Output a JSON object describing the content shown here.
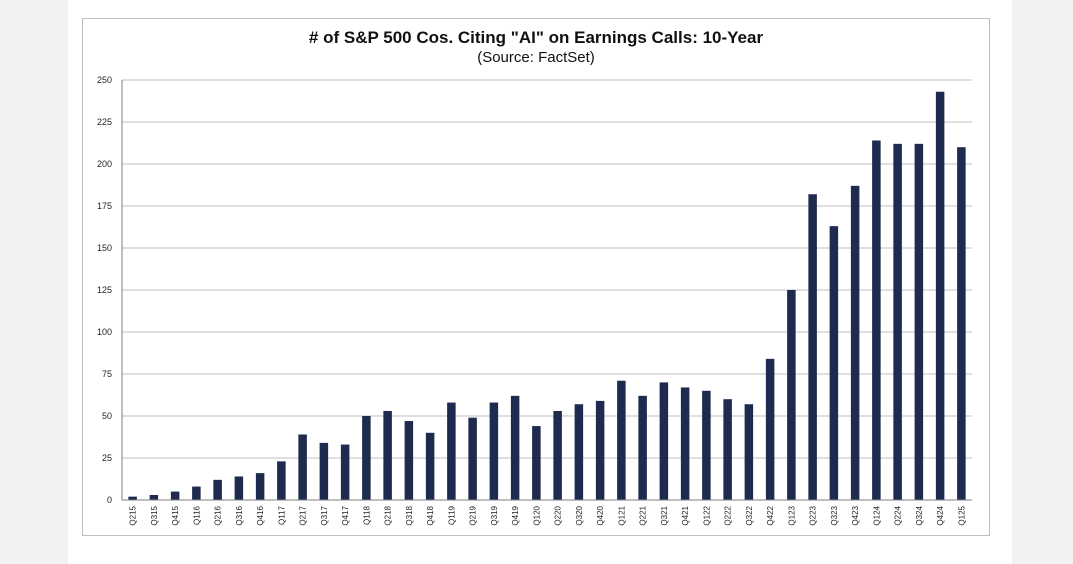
{
  "colors": {
    "bar": "#1f2a4f",
    "grid": "#bfbfbf",
    "axis": "#7f7f7f"
  },
  "chart_data": {
    "type": "bar",
    "title": "# of S&P 500 Cos. Citing \"AI\" on Earnings Calls: 10-Year",
    "subtitle": "(Source: FactSet)",
    "xlabel": "",
    "ylabel": "",
    "ylim": [
      0,
      250
    ],
    "yticks": [
      0,
      25,
      50,
      75,
      100,
      125,
      150,
      175,
      200,
      225,
      250
    ],
    "grid": true,
    "categories": [
      "Q215",
      "Q315",
      "Q415",
      "Q116",
      "Q216",
      "Q316",
      "Q416",
      "Q117",
      "Q217",
      "Q317",
      "Q417",
      "Q118",
      "Q218",
      "Q318",
      "Q418",
      "Q119",
      "Q219",
      "Q319",
      "Q419",
      "Q120",
      "Q220",
      "Q320",
      "Q420",
      "Q121",
      "Q221",
      "Q321",
      "Q421",
      "Q122",
      "Q222",
      "Q322",
      "Q422",
      "Q123",
      "Q223",
      "Q323",
      "Q423",
      "Q124",
      "Q224",
      "Q324",
      "Q424",
      "Q125"
    ],
    "values": [
      2,
      3,
      5,
      8,
      12,
      14,
      16,
      23,
      39,
      34,
      33,
      50,
      53,
      47,
      40,
      58,
      49,
      58,
      62,
      44,
      53,
      57,
      59,
      71,
      62,
      70,
      67,
      65,
      60,
      57,
      84,
      125,
      182,
      163,
      187,
      214,
      212,
      212,
      243,
      210
    ]
  }
}
